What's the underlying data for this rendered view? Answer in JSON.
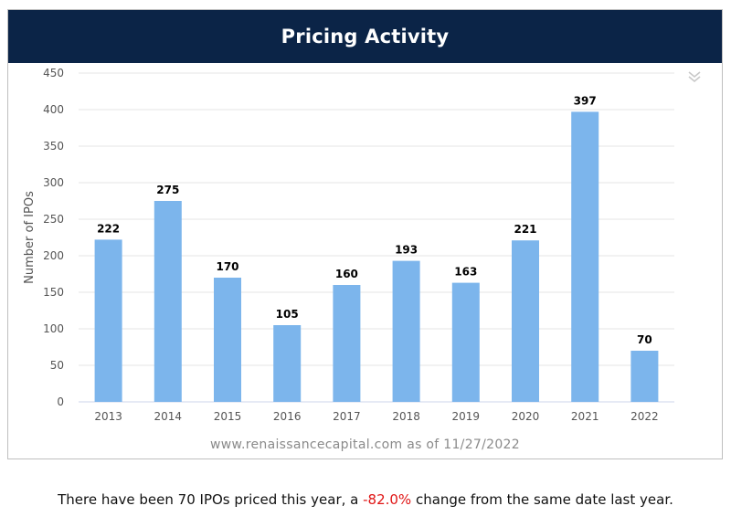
{
  "header": {
    "title": "Pricing Activity"
  },
  "chart_data": {
    "type": "bar",
    "categories": [
      "2013",
      "2014",
      "2015",
      "2016",
      "2017",
      "2018",
      "2019",
      "2020",
      "2021",
      "2022"
    ],
    "values": [
      222,
      275,
      170,
      105,
      160,
      193,
      163,
      221,
      397,
      70
    ],
    "data_labels": [
      "222",
      "275",
      "170",
      "105",
      "160",
      "193",
      "163",
      "221",
      "397",
      "70"
    ],
    "title": "Pricing Activity",
    "xlabel": "",
    "ylabel": "Number of IPOs",
    "ylim": [
      0,
      450
    ],
    "yticks": [
      0,
      50,
      100,
      150,
      200,
      250,
      300,
      350,
      400,
      450
    ],
    "grid": true,
    "legend": "none",
    "bar_color": "#7cb5ec"
  },
  "source_text": "www.renaissancecapital.com as of 11/27/2022",
  "footer": {
    "before": "There have been 70 IPOs priced this year, a ",
    "change": "-82.0%",
    "after": " change from the same date last year.",
    "change_color": "#e01515"
  },
  "icons": {
    "collapse": "double-chevron-down-icon"
  },
  "colors": {
    "header_bg": "#0b2447",
    "grid": "#e6e6e6",
    "axis_text": "#555555"
  }
}
